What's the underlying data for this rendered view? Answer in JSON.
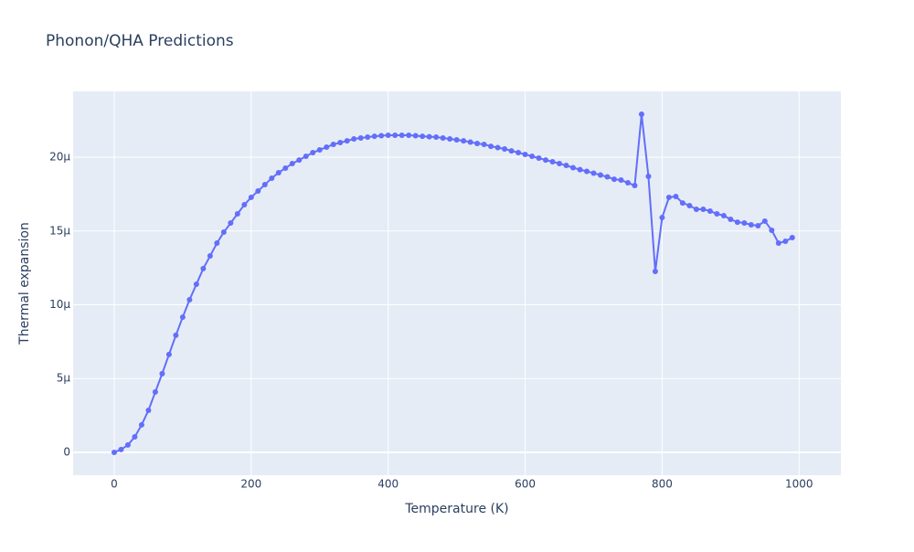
{
  "chart_data": {
    "type": "line",
    "title": "Phonon/QHA Predictions",
    "x_label": "Temperature (K)",
    "y_label": "Thermal expansion",
    "color": "#636efa",
    "grid": true,
    "x": [
      0,
      10,
      20,
      30,
      40,
      50,
      60,
      70,
      80,
      90,
      100,
      110,
      120,
      130,
      140,
      150,
      160,
      170,
      180,
      190,
      200,
      210,
      220,
      230,
      240,
      250,
      260,
      270,
      280,
      290,
      300,
      310,
      320,
      330,
      340,
      350,
      360,
      370,
      380,
      390,
      400,
      410,
      420,
      430,
      440,
      450,
      460,
      470,
      480,
      490,
      500,
      510,
      520,
      530,
      540,
      550,
      560,
      570,
      580,
      590,
      600,
      610,
      620,
      630,
      640,
      650,
      660,
      670,
      680,
      690,
      700,
      710,
      720,
      730,
      740,
      750,
      760,
      770,
      780,
      790,
      800,
      810,
      820,
      830,
      840,
      850,
      860,
      870,
      880,
      890,
      900,
      910,
      920,
      930,
      940,
      950,
      960,
      970,
      980,
      990
    ],
    "values": [
      0,
      1.9e-07,
      5e-07,
      1.05e-06,
      1.86e-06,
      2.85e-06,
      4.09e-06,
      5.33e-06,
      6.63e-06,
      7.93e-06,
      9.16e-06,
      1.034e-05,
      1.139e-05,
      1.245e-05,
      1.331e-05,
      1.418e-05,
      1.492e-05,
      1.554e-05,
      1.616e-05,
      1.678e-05,
      1.728e-05,
      1.771e-05,
      1.814e-05,
      1.858e-05,
      1.895e-05,
      1.926e-05,
      1.957e-05,
      1.981e-05,
      2.006e-05,
      2.031e-05,
      2.05e-05,
      2.068e-05,
      2.087e-05,
      2.099e-05,
      2.111e-05,
      2.124e-05,
      2.13e-05,
      2.136e-05,
      2.142e-05,
      2.146e-05,
      2.149e-05,
      2.149e-05,
      2.149e-05,
      2.149e-05,
      2.146e-05,
      2.142e-05,
      2.139e-05,
      2.136e-05,
      2.13e-05,
      2.124e-05,
      2.118e-05,
      2.111e-05,
      2.102e-05,
      2.093e-05,
      2.087e-05,
      2.074e-05,
      2.065e-05,
      2.056e-05,
      2.043e-05,
      2.031e-05,
      2.019e-05,
      2.006e-05,
      1.994e-05,
      1.981e-05,
      1.969e-05,
      1.957e-05,
      1.944e-05,
      1.929e-05,
      1.916e-05,
      1.904e-05,
      1.892e-05,
      1.879e-05,
      1.867e-05,
      1.851e-05,
      1.845e-05,
      1.827e-05,
      1.808e-05,
      2.291e-05,
      1.87e-05,
      1.226e-05,
      1.591e-05,
      1.728e-05,
      1.734e-05,
      1.69e-05,
      1.672e-05,
      1.647e-05,
      1.647e-05,
      1.635e-05,
      1.616e-05,
      1.604e-05,
      1.579e-05,
      1.56e-05,
      1.554e-05,
      1.542e-05,
      1.536e-05,
      1.567e-05,
      1.505e-05,
      1.418e-05,
      1.43e-05,
      1.455e-05
    ],
    "xlim": [
      -60,
      1061
    ],
    "xticks": [
      0,
      200,
      400,
      600,
      800,
      1000
    ],
    "ylim": [
      -1.55e-06,
      2.446e-05
    ],
    "yticks": [
      0,
      {
        "value": 5e-06,
        "label": "5µ"
      },
      {
        "value": 1e-05,
        "label": "10µ"
      },
      {
        "value": 1.5e-05,
        "label": "15µ"
      },
      {
        "value": 2e-05,
        "label": "20µ"
      }
    ]
  }
}
